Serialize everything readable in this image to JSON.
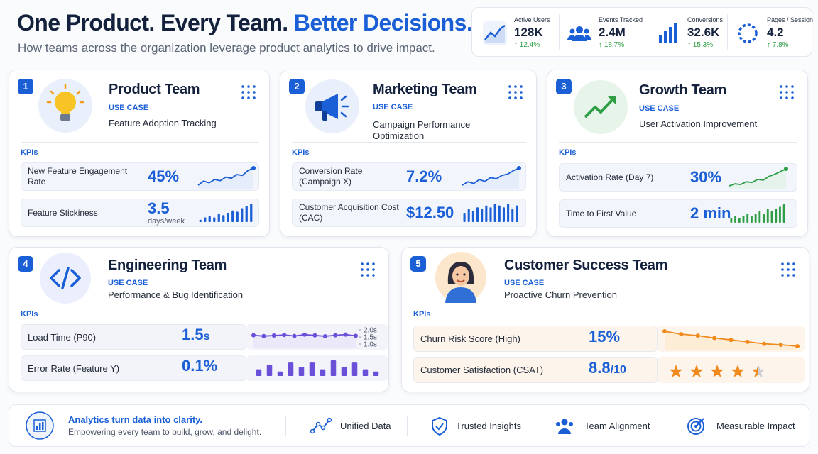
{
  "header": {
    "title": "One Product. Every Team.",
    "title_highlight": "Better Decisions.",
    "subtitle": "How teams across the organization leverage product analytics to drive impact."
  },
  "stats": [
    {
      "label": "Active Users",
      "value": "128K",
      "change": "↑ 12.4%"
    },
    {
      "label": "Events Tracked",
      "value": "2.4M",
      "change": "↑ 18.7%"
    },
    {
      "label": "Conversions",
      "value": "32.6K",
      "change": "↑ 15.3%"
    },
    {
      "label": "Pages / Session",
      "value": "4.2",
      "change": "↑ 7.8%"
    }
  ],
  "teams": [
    {
      "number": "1",
      "name": "Product Team",
      "use_case_label": "USE CASE",
      "use_case": "Feature Adoption Tracking",
      "kpis_label": "KPIs",
      "kpis": [
        {
          "name": "New Feature Engagement Rate",
          "value": "45%",
          "trend": {
            "type": "line",
            "values": [
              3,
              4,
              3.6,
              4.4,
              4.1,
              5,
              4.7,
              5.6,
              5.4,
              6.6,
              7.2
            ]
          }
        },
        {
          "name": "Feature Stickiness",
          "value": "3.5",
          "unit": "days/week",
          "trend": {
            "type": "bar",
            "values": [
              1,
              2,
              2.5,
              2,
              3.5,
              3,
              4,
              5,
              4.5,
              6,
              7,
              8
            ]
          }
        }
      ]
    },
    {
      "number": "2",
      "name": "Marketing Team",
      "use_case_label": "USE CASE",
      "use_case": "Campaign Performance Optimization",
      "kpis_label": "KPIs",
      "kpis": [
        {
          "name": "Conversion Rate (Campaign X)",
          "value": "7.2%",
          "trend": {
            "type": "line",
            "values": [
              3,
              3.8,
              3.4,
              4.3,
              3.9,
              4.8,
              4.5,
              5.3,
              5.6,
              6.4,
              7
            ]
          }
        },
        {
          "name": "Customer Acquisition Cost (CAC)",
          "value": "$12.50",
          "trend": {
            "type": "bar",
            "values": [
              5,
              7,
              6,
              8,
              7,
              9,
              8,
              10,
              9,
              8,
              10,
              7,
              9
            ]
          }
        }
      ]
    },
    {
      "number": "3",
      "name": "Growth Team",
      "use_case_label": "USE CASE",
      "use_case": "User Activation Improvement",
      "kpis_label": "KPIs",
      "kpis": [
        {
          "name": "Activation Rate (Day 7)",
          "value": "30%",
          "trend": {
            "type": "line",
            "values": [
              2,
              2.6,
              2.4,
              3.2,
              3,
              3.9,
              3.7,
              4.8,
              5.4,
              6.2,
              7
            ]
          }
        },
        {
          "name": "Time to First Value",
          "value": "2 min",
          "trend": {
            "type": "bar",
            "values": [
              2,
              3,
              2,
              3,
              4,
              3,
              4,
              5,
              4,
              6,
              5,
              6,
              7,
              8
            ]
          }
        }
      ]
    },
    {
      "number": "4",
      "name": "Engineering Team",
      "use_case_label": "USE CASE",
      "use_case": "Performance & Bug Identification",
      "kpis_label": "KPIs",
      "kpis": [
        {
          "name": "Load Time (P90)",
          "value": "1.5",
          "unit": "s",
          "trend": {
            "type": "line",
            "values": [
              1.62,
              1.56,
              1.6,
              1.64,
              1.57,
              1.66,
              1.61,
              1.55,
              1.62,
              1.67,
              1.58
            ],
            "ylim": [
              1,
              2
            ],
            "yticks": [
              {
                "value": 2,
                "label": "2.0s"
              },
              {
                "value": 1.5,
                "label": "1.5s"
              },
              {
                "value": 1,
                "label": "1.0s"
              }
            ]
          }
        },
        {
          "name": "Error Rate (Feature Y)",
          "value": "0.1%",
          "trend": {
            "type": "bar",
            "values": [
              3,
              5,
              2,
              6,
              4,
              6,
              3,
              7,
              4,
              6,
              3,
              2
            ]
          }
        }
      ]
    },
    {
      "number": "5",
      "name": "Customer Success Team",
      "use_case_label": "USE CASE",
      "use_case": "Proactive Churn Prevention",
      "kpis_label": "KPIs",
      "kpis": [
        {
          "name": "Churn Risk Score (High)",
          "value": "15%",
          "trend": {
            "type": "line",
            "values": [
              9,
              8.4,
              8.1,
              7.6,
              7.2,
              6.8,
              6.4,
              6.2,
              5.9
            ]
          }
        },
        {
          "name": "Customer Satisfaction (CSAT)",
          "value": "8.8",
          "unit": "/10"
        }
      ]
    }
  ],
  "footer": {
    "headline": "Analytics turn data into clarity.",
    "tagline": "Empowering every team to build, grow, and delight.",
    "items": [
      "Unified Data",
      "Trusted Insights",
      "Team Alignment",
      "Measurable Impact"
    ]
  }
}
